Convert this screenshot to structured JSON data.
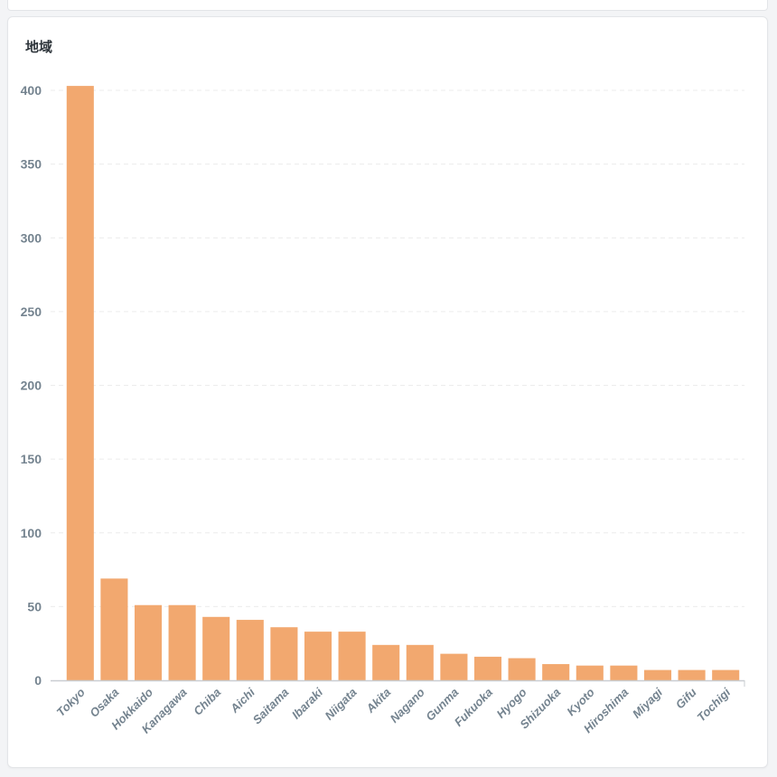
{
  "card": {
    "title": "地域"
  },
  "colors": {
    "bar": "#f2a86f",
    "grid": "#ececec",
    "axis": "#c9cdd1",
    "tick_text": "#74838f"
  },
  "chart_data": {
    "type": "bar",
    "title": "",
    "xlabel": "",
    "ylabel": "",
    "ylim": [
      0,
      400
    ],
    "yticks": [
      0,
      50,
      100,
      150,
      200,
      250,
      300,
      350,
      400
    ],
    "grid": true,
    "categories": [
      "Tokyo",
      "Osaka",
      "Hokkaido",
      "Kanagawa",
      "Chiba",
      "Aichi",
      "Saitama",
      "Ibaraki",
      "Niigata",
      "Akita",
      "Nagano",
      "Gunma",
      "Fukuoka",
      "Hyogo",
      "Shizuoka",
      "Kyoto",
      "Hiroshima",
      "Miyagi",
      "Gifu",
      "Tochigi"
    ],
    "values": [
      403,
      69,
      51,
      51,
      43,
      41,
      36,
      33,
      33,
      24,
      24,
      18,
      16,
      15,
      11,
      10,
      10,
      7,
      7,
      7
    ]
  }
}
